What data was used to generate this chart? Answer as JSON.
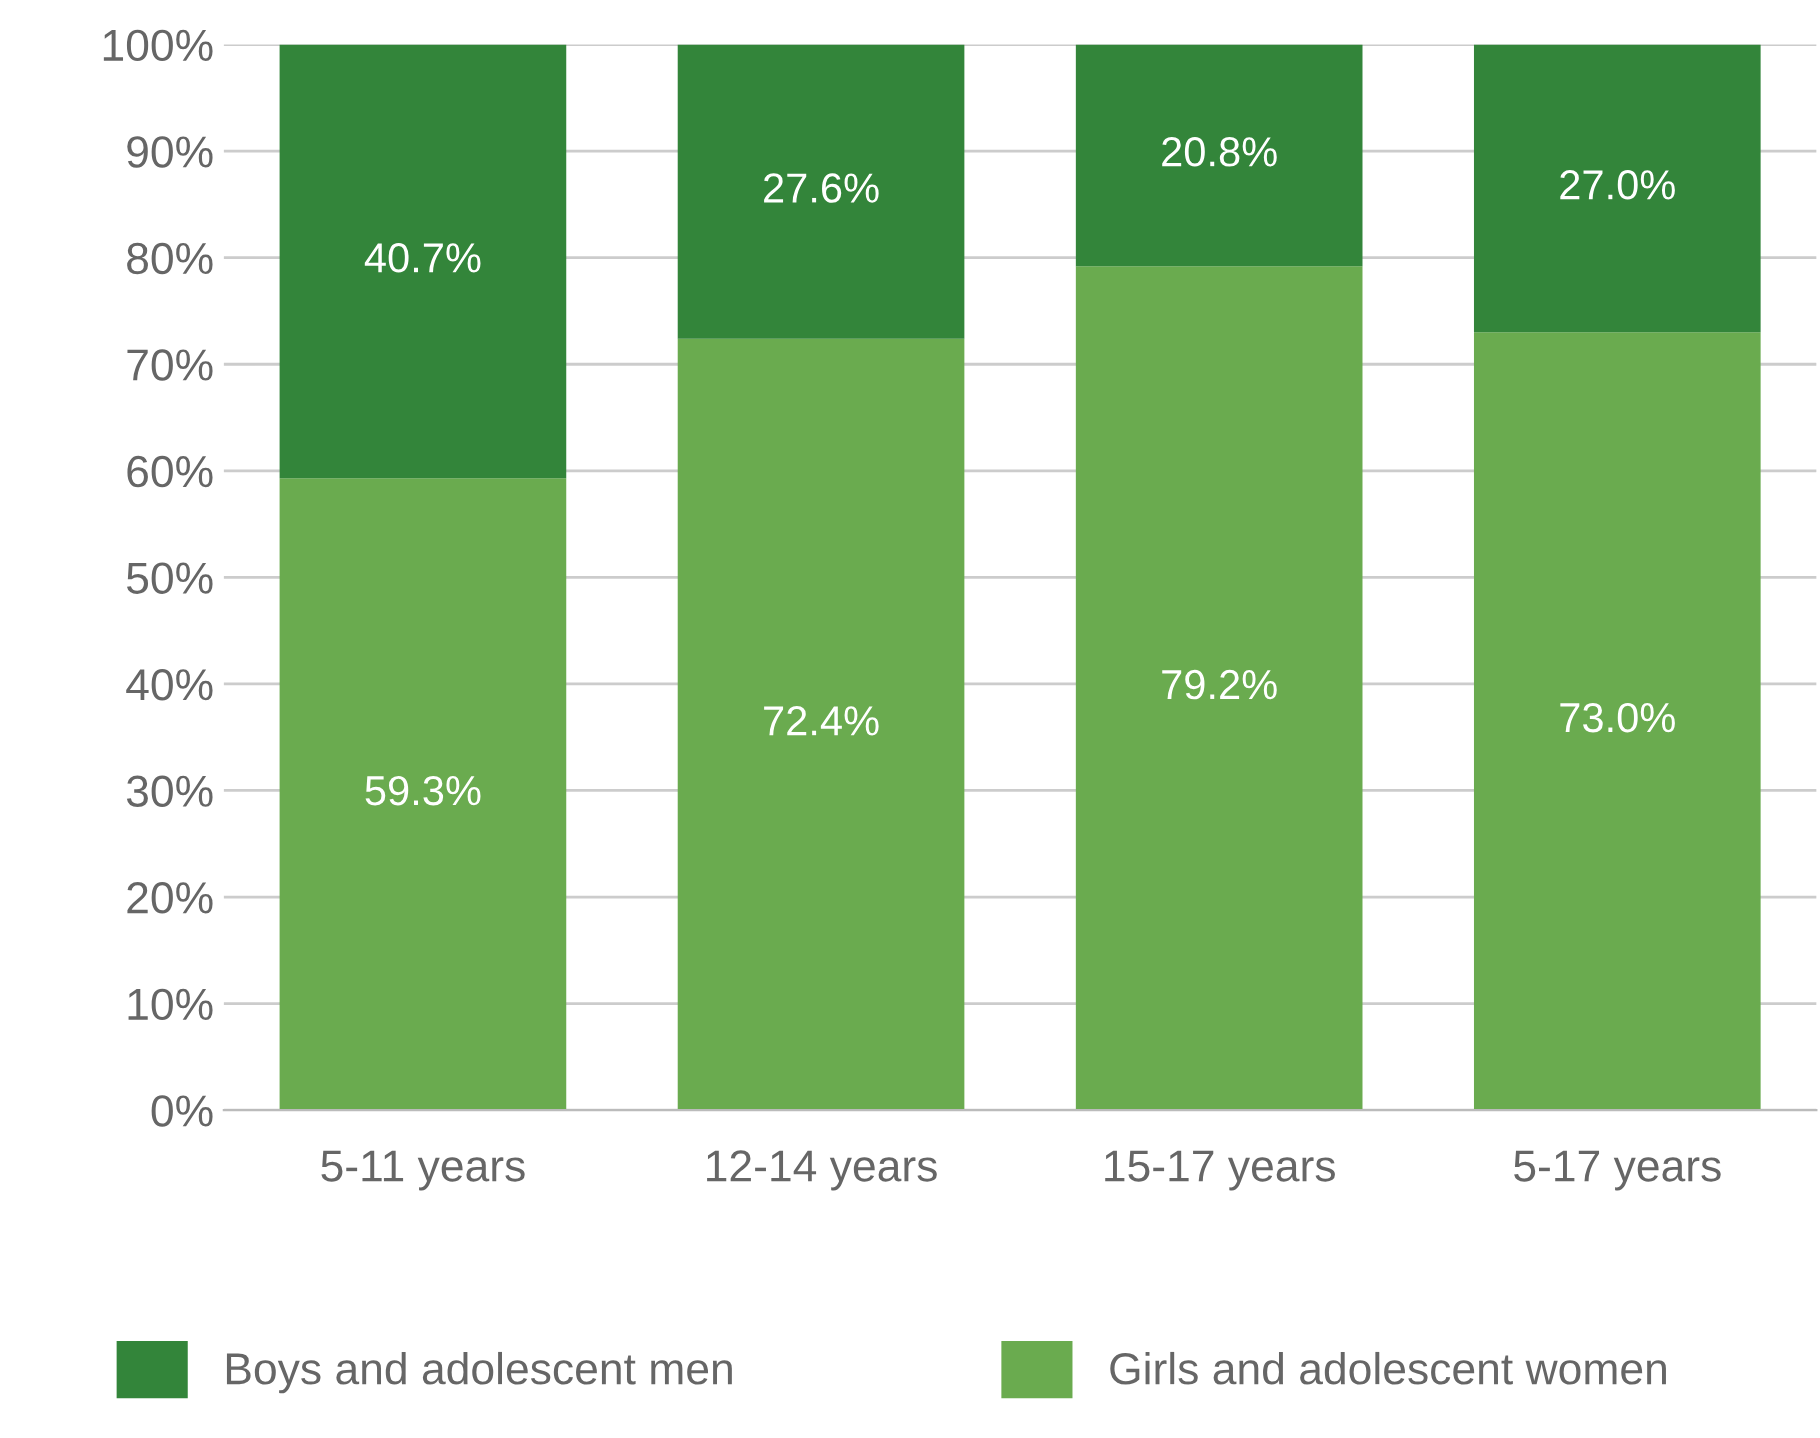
{
  "chart_data": {
    "type": "bar",
    "stacked": true,
    "categories": [
      "5-11 years",
      "12-14 years",
      "15-17 years",
      "5-17 years"
    ],
    "series": [
      {
        "name": "Girls and adolescent women",
        "color": "#6aab4f",
        "values": [
          59.3,
          72.4,
          79.2,
          73.0
        ],
        "value_labels": [
          "59.3%",
          "72.4%",
          "79.2%",
          "73.0%"
        ]
      },
      {
        "name": "Boys and adolescent men",
        "color": "#33853a",
        "values": [
          40.7,
          27.6,
          20.8,
          27.0
        ],
        "value_labels": [
          "40.7%",
          "27.6%",
          "20.8%",
          "27.0%"
        ]
      }
    ],
    "ylim": [
      0,
      100
    ],
    "yticks": [
      {
        "value": 0,
        "label": "0%"
      },
      {
        "value": 10,
        "label": "10%"
      },
      {
        "value": 20,
        "label": "20%"
      },
      {
        "value": 30,
        "label": "30%"
      },
      {
        "value": 40,
        "label": "40%"
      },
      {
        "value": 50,
        "label": "50%"
      },
      {
        "value": 60,
        "label": "60%"
      },
      {
        "value": 70,
        "label": "70%"
      },
      {
        "value": 80,
        "label": "80%"
      },
      {
        "value": 90,
        "label": "90%"
      },
      {
        "value": 100,
        "label": "100%"
      }
    ],
    "grid": "y",
    "legend": "bottom"
  }
}
